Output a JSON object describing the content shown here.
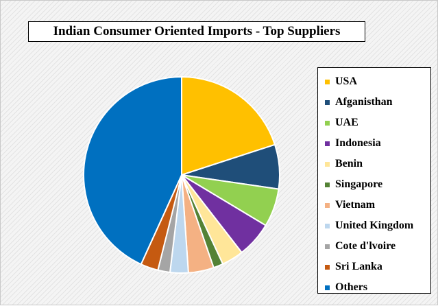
{
  "chart_data": {
    "type": "pie",
    "title": "Indian Consumer Oriented Imports - Top Suppliers",
    "legend_position": "right",
    "slices": [
      {
        "name": "USA",
        "value": 20.0,
        "color": "#FFC000"
      },
      {
        "name": "Afganisthan",
        "value": 7.3,
        "color": "#1F4E79"
      },
      {
        "name": "UAE",
        "value": 6.3,
        "color": "#92D050"
      },
      {
        "name": "Indonesia",
        "value": 5.9,
        "color": "#7030A0"
      },
      {
        "name": "Benin",
        "value": 3.6,
        "color": "#FFE699"
      },
      {
        "name": "Singapore",
        "value": 1.6,
        "color": "#548235"
      },
      {
        "name": "Vietnam",
        "value": 4.2,
        "color": "#F4B183"
      },
      {
        "name": "United Kingdom",
        "value": 3.0,
        "color": "#BDD7EE"
      },
      {
        "name": "Cote d'lvoire",
        "value": 2.0,
        "color": "#A5A5A5"
      },
      {
        "name": "Sri Lanka",
        "value": 2.9,
        "color": "#C55A11"
      },
      {
        "name": "Others",
        "value": 43.2,
        "color": "#0070C0"
      }
    ]
  }
}
